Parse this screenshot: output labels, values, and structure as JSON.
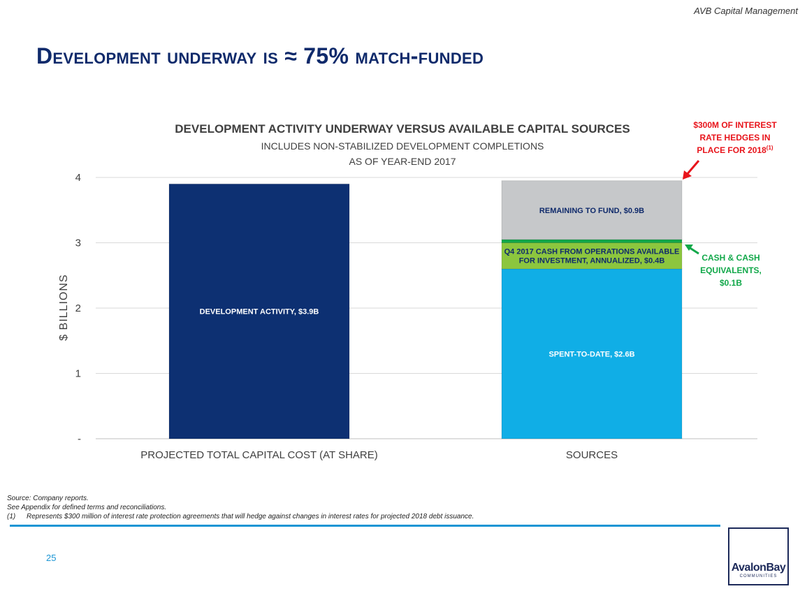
{
  "header": {
    "company": "AVB Capital Management",
    "title": "Development underway is ≈ 75% match-funded"
  },
  "chart_data": {
    "type": "bar",
    "stacked": true,
    "title": "DEVELOPMENT ACTIVITY UNDERWAY VERSUS AVAILABLE CAPITAL SOURCES",
    "subtitle_lines": [
      "INCLUDES NON-STABILIZED DEVELOPMENT COMPLETIONS",
      "AS OF YEAR-END 2017"
    ],
    "ylabel": "$ BILLIONS",
    "ylim": [
      0,
      4
    ],
    "yticks": [
      {
        "value": 0,
        "label": "-"
      },
      {
        "value": 1,
        "label": "1"
      },
      {
        "value": 2,
        "label": "2"
      },
      {
        "value": 3,
        "label": "3"
      },
      {
        "value": 4,
        "label": "4"
      }
    ],
    "grid": true,
    "categories": [
      "PROJECTED TOTAL CAPITAL COST (AT SHARE)",
      "SOURCES"
    ],
    "segments": [
      {
        "category": 0,
        "value": 3.9,
        "color": "#0d3072",
        "label": [
          "DEVELOPMENT ACTIVITY, $3.9B"
        ],
        "label_color": "#ffffff"
      },
      {
        "category": 1,
        "value": 2.6,
        "color": "#10aee6",
        "label": [
          "SPENT-TO-DATE, $2.6B"
        ],
        "label_color": "#ffffff"
      },
      {
        "category": 1,
        "value": 0.4,
        "color": "#8cc63e",
        "label": [
          "Q4 2017 CASH FROM OPERATIONS AVAILABLE",
          "FOR INVESTMENT, ANNUALIZED, $0.4B"
        ],
        "label_color": "#0f2a6b"
      },
      {
        "category": 1,
        "value": 0.05,
        "color": "#12a84a",
        "label": [],
        "label_color": "#0f2a6b"
      },
      {
        "category": 1,
        "value": 0.9,
        "color": "#c6c8ca",
        "label": [
          "REMAINING TO FUND, $0.9B"
        ],
        "label_color": "#0f2a6b"
      }
    ],
    "annotations": {
      "hedges": {
        "lines": [
          "$300M OF INTEREST",
          "RATE HEDGES IN",
          "PLACE FOR 2018"
        ],
        "superscript": "(1)",
        "color": "#e8141b"
      },
      "cash": {
        "lines": [
          "CASH & CASH",
          "EQUIVALENTS,",
          "$0.1B"
        ],
        "color": "#12a84a"
      }
    }
  },
  "footer": {
    "source": "Source:  Company reports.",
    "appendix": "See Appendix for defined terms and reconciliations.",
    "note_number": "(1)",
    "note_text": "Represents $300 million of interest rate protection agreements that will hedge against changes in interest rates for projected 2018 debt issuance.",
    "page_number": "25",
    "logo_text": "AvalonBay",
    "logo_subtext": "COMMUNITIES"
  }
}
